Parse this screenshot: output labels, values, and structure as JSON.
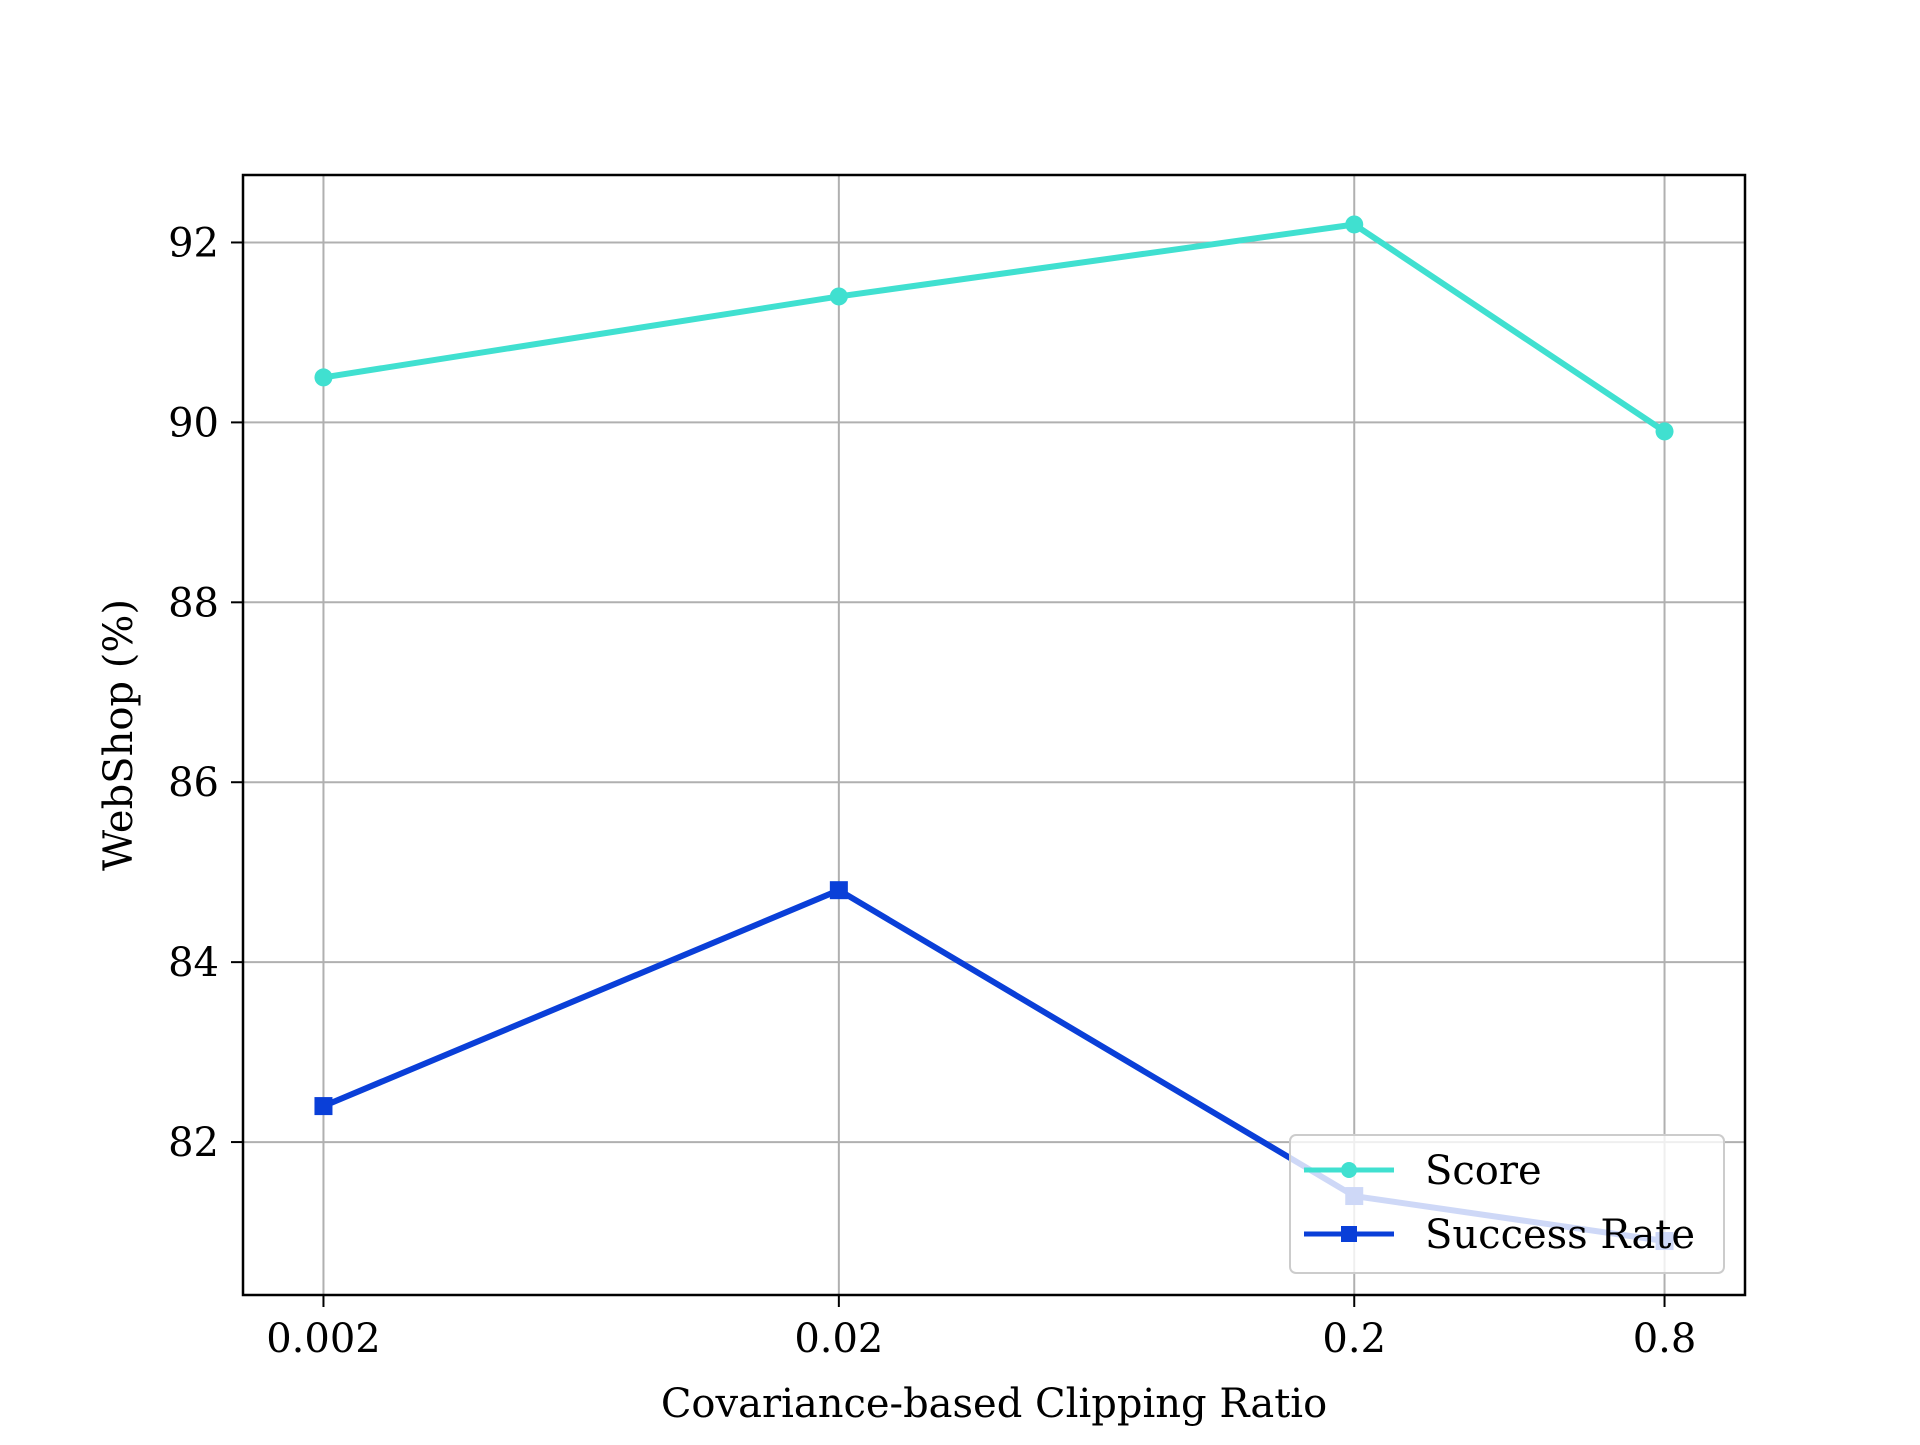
{
  "chart_data": {
    "type": "line",
    "title": "",
    "xlabel": "Covariance-based Clipping Ratio",
    "ylabel": "WebShop (%)",
    "categories": [
      "0.002",
      "0.02",
      "0.2",
      "0.8"
    ],
    "x_positions": [
      0.002,
      0.02,
      0.2,
      0.8
    ],
    "x_scale": "log",
    "ylim": [
      80.3,
      92.75
    ],
    "yticks": [
      82,
      84,
      86,
      88,
      90,
      92
    ],
    "grid": true,
    "legend_position": "lower right",
    "series": [
      {
        "name": "Score",
        "color": "#40e0d0",
        "marker": "circle",
        "values": [
          90.5,
          91.4,
          92.2,
          89.9
        ]
      },
      {
        "name": "Success Rate",
        "color": "#0a3fd8",
        "marker": "square",
        "values": [
          82.4,
          84.8,
          81.4,
          80.9
        ]
      }
    ]
  }
}
